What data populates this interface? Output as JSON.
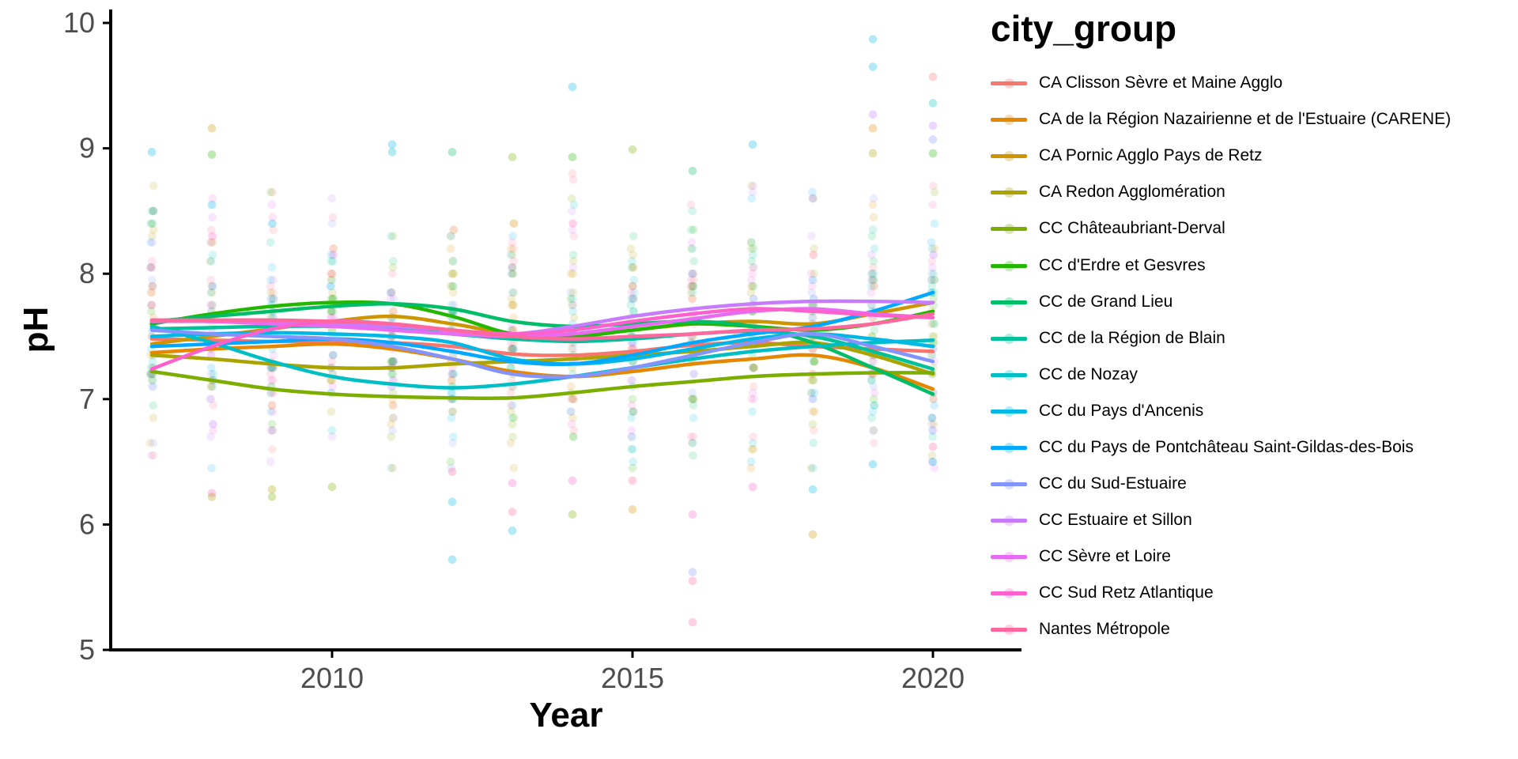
{
  "figure": {
    "background": "#FFFFFF"
  },
  "legend": {
    "title": "city_group"
  },
  "chart_data": {
    "type": "scatter",
    "title": "",
    "xlabel": "Year",
    "ylabel": "pH",
    "x_ticks": [
      "2010",
      "2015",
      "2020"
    ],
    "x_tick_years": [
      2010,
      2015,
      2020
    ],
    "y_ticks": [
      "5",
      "6",
      "7",
      "8",
      "9",
      "10"
    ],
    "y_tick_values": [
      5,
      6,
      7,
      8,
      9,
      10
    ],
    "xlim": [
      2006.6,
      2021.4
    ],
    "ylim": [
      5,
      10
    ],
    "grid": false,
    "legend_position": "right",
    "axis_color": "#000000",
    "tick_label_color": "#4D4D4D",
    "years": [
      2007,
      2008,
      2009,
      2010,
      2011,
      2012,
      2013,
      2014,
      2015,
      2016,
      2017,
      2018,
      2019,
      2020
    ],
    "series": [
      {
        "name": "CA Clisson Sèvre et Maine Agglo",
        "color": "#F8766D",
        "values": [
          7.48,
          7.47,
          7.46,
          7.46,
          7.45,
          7.42,
          7.36,
          7.35,
          7.38,
          7.43,
          7.45,
          7.42,
          7.4,
          7.38
        ]
      },
      {
        "name": "CA de la Région Nazairienne et de l'Estuaire (CARENE)",
        "color": "#E58700",
        "values": [
          7.37,
          7.4,
          7.42,
          7.44,
          7.4,
          7.32,
          7.22,
          7.18,
          7.22,
          7.28,
          7.32,
          7.35,
          7.25,
          7.08
        ]
      },
      {
        "name": "CA Pornic Agglo Pays de Retz",
        "color": "#CD9600",
        "values": [
          7.44,
          7.5,
          7.56,
          7.62,
          7.66,
          7.6,
          7.52,
          7.5,
          7.55,
          7.6,
          7.62,
          7.6,
          7.68,
          7.77
        ]
      },
      {
        "name": "CA Redon Agglomération",
        "color": "#ABA300",
        "values": [
          7.35,
          7.32,
          7.28,
          7.25,
          7.25,
          7.28,
          7.3,
          7.32,
          7.35,
          7.38,
          7.42,
          7.45,
          7.35,
          7.2
        ]
      },
      {
        "name": "CC Châteaubriant-Derval",
        "color": "#7CAE00",
        "values": [
          7.22,
          7.15,
          7.08,
          7.04,
          7.02,
          7.01,
          7.01,
          7.05,
          7.1,
          7.14,
          7.18,
          7.2,
          7.21,
          7.21
        ]
      },
      {
        "name": "CC d'Erdre et Gesvres",
        "color": "#24B700",
        "values": [
          7.6,
          7.68,
          7.74,
          7.77,
          7.76,
          7.66,
          7.52,
          7.5,
          7.55,
          7.6,
          7.58,
          7.55,
          7.6,
          7.7
        ]
      },
      {
        "name": "CC de Grand Lieu",
        "color": "#00BE67",
        "values": [
          7.62,
          7.66,
          7.7,
          7.74,
          7.76,
          7.72,
          7.62,
          7.58,
          7.6,
          7.62,
          7.58,
          7.45,
          7.25,
          7.04
        ]
      },
      {
        "name": "CC de la Région de Blain",
        "color": "#00C19A",
        "values": [
          7.56,
          7.57,
          7.58,
          7.58,
          7.56,
          7.52,
          7.48,
          7.46,
          7.48,
          7.52,
          7.54,
          7.5,
          7.38,
          7.24
        ]
      },
      {
        "name": "CC de Nozay",
        "color": "#00BFC4",
        "values": [
          7.58,
          7.45,
          7.3,
          7.18,
          7.12,
          7.09,
          7.12,
          7.18,
          7.25,
          7.32,
          7.38,
          7.42,
          7.45,
          7.47
        ]
      },
      {
        "name": "CC du Pays d'Ancenis",
        "color": "#00B8E5",
        "values": [
          7.5,
          7.52,
          7.53,
          7.52,
          7.5,
          7.45,
          7.32,
          7.28,
          7.32,
          7.4,
          7.48,
          7.52,
          7.48,
          7.42
        ]
      },
      {
        "name": "CC du Pays de Pontchâteau Saint-Gildas-des-Bois",
        "color": "#00A9FF",
        "values": [
          7.42,
          7.44,
          7.46,
          7.48,
          7.45,
          7.38,
          7.3,
          7.28,
          7.35,
          7.45,
          7.52,
          7.58,
          7.7,
          7.85
        ]
      },
      {
        "name": "CC du Sud-Estuaire",
        "color": "#8494FF",
        "values": [
          7.55,
          7.52,
          7.5,
          7.48,
          7.42,
          7.32,
          7.2,
          7.18,
          7.25,
          7.35,
          7.45,
          7.52,
          7.42,
          7.3
        ]
      },
      {
        "name": "CC Estuaire et Sillon",
        "color": "#C77CFF",
        "values": [
          7.62,
          7.62,
          7.61,
          7.6,
          7.58,
          7.55,
          7.52,
          7.58,
          7.66,
          7.72,
          7.76,
          7.78,
          7.78,
          7.77
        ]
      },
      {
        "name": "CC Sèvre et Loire",
        "color": "#E76BF3",
        "values": [
          7.63,
          7.62,
          7.6,
          7.58,
          7.55,
          7.52,
          7.5,
          7.52,
          7.58,
          7.64,
          7.7,
          7.72,
          7.68,
          7.65
        ]
      },
      {
        "name": "CC Sud Retz Atlantique",
        "color": "#FF61CC",
        "values": [
          7.24,
          7.42,
          7.56,
          7.62,
          7.6,
          7.55,
          7.52,
          7.55,
          7.62,
          7.68,
          7.72,
          7.7,
          7.67,
          7.65
        ]
      },
      {
        "name": "Nantes Métropole",
        "color": "#FF689E",
        "values": [
          7.63,
          7.63,
          7.63,
          7.62,
          7.6,
          7.55,
          7.5,
          7.48,
          7.5,
          7.52,
          7.55,
          7.56,
          7.6,
          7.68
        ]
      }
    ],
    "scatter": {
      "seed": 7,
      "points_per_year": 56,
      "center": 7.55,
      "spread": 1.05,
      "clip_min": 6.45,
      "clip_max": 8.88,
      "alpha": 0.16,
      "radius": 5.3,
      "quantize": 0.05,
      "x_jitter": 2.2
    },
    "outliers": [
      [
        2007,
        8.97,
        9
      ],
      [
        2008,
        9.16,
        2
      ],
      [
        2008,
        8.95,
        5
      ],
      [
        2008,
        6.25,
        14
      ],
      [
        2008,
        6.22,
        3
      ],
      [
        2009,
        6.28,
        3
      ],
      [
        2009,
        6.22,
        4
      ],
      [
        2010,
        6.3,
        4
      ],
      [
        2011,
        9.03,
        9
      ],
      [
        2011,
        8.97,
        8
      ],
      [
        2012,
        8.97,
        6
      ],
      [
        2012,
        6.18,
        9
      ],
      [
        2012,
        5.72,
        9
      ],
      [
        2012,
        6.42,
        15
      ],
      [
        2013,
        8.93,
        4
      ],
      [
        2013,
        6.33,
        14
      ],
      [
        2013,
        6.1,
        15
      ],
      [
        2013,
        5.95,
        9
      ],
      [
        2014,
        9.49,
        9
      ],
      [
        2014,
        8.93,
        5
      ],
      [
        2014,
        6.35,
        14
      ],
      [
        2014,
        6.08,
        4
      ],
      [
        2015,
        8.99,
        4
      ],
      [
        2015,
        6.35,
        15
      ],
      [
        2015,
        6.12,
        2
      ],
      [
        2016,
        8.82,
        6
      ],
      [
        2016,
        6.08,
        14
      ],
      [
        2016,
        5.62,
        11
      ],
      [
        2016,
        5.55,
        15
      ],
      [
        2016,
        5.22,
        15
      ],
      [
        2017,
        9.03,
        9
      ],
      [
        2017,
        6.3,
        14
      ],
      [
        2018,
        8.6,
        11
      ],
      [
        2018,
        6.28,
        9
      ],
      [
        2018,
        5.92,
        2
      ],
      [
        2019,
        9.87,
        9
      ],
      [
        2019,
        9.65,
        9
      ],
      [
        2019,
        9.27,
        12
      ],
      [
        2019,
        9.16,
        1
      ],
      [
        2019,
        8.96,
        3
      ],
      [
        2019,
        6.48,
        9
      ],
      [
        2020,
        9.57,
        0
      ],
      [
        2020,
        9.36,
        8
      ],
      [
        2020,
        9.18,
        12
      ],
      [
        2020,
        9.07,
        11
      ],
      [
        2020,
        8.96,
        5
      ],
      [
        2020,
        6.62,
        15
      ],
      [
        2020,
        6.5,
        9
      ]
    ]
  }
}
